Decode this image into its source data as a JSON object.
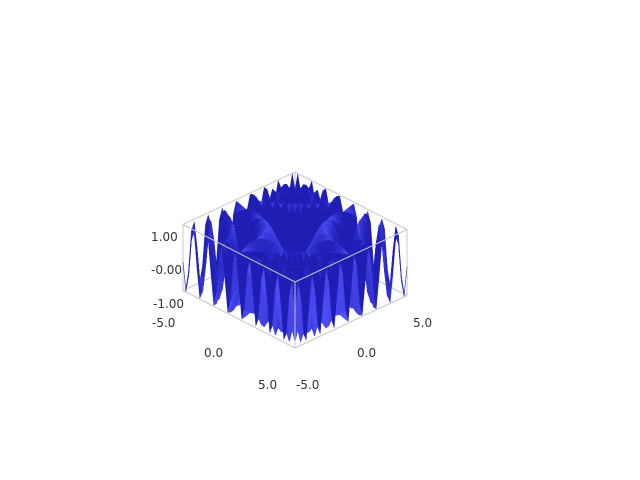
{
  "chart_data": {
    "type": "surface3d",
    "title": "",
    "xlabel": "",
    "ylabel": "",
    "zlabel": "",
    "xlim": [
      -5.0,
      5.0
    ],
    "ylim": [
      -5.0,
      5.0
    ],
    "zlim": [
      -1.0,
      1.0
    ],
    "x_ticks": [
      "-5.0",
      "0.0",
      "5.0"
    ],
    "y_ticks": [
      "-5.0",
      "0.0",
      "5.0"
    ],
    "z_ticks": [
      "1.00",
      "-0.00",
      "-1.00"
    ],
    "grid": false,
    "surface_color": "#5555ff",
    "box_color": "#c8c8c8",
    "surface_function": "sin(x*y)"
  }
}
